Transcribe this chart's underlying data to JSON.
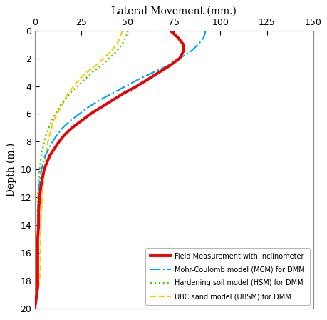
{
  "title": "Lateral Movement (mm.)",
  "ylabel": "Depth (m.)",
  "xlim": [
    0,
    150
  ],
  "ylim": [
    20,
    0
  ],
  "xticks": [
    0,
    25,
    50,
    75,
    100,
    125,
    150
  ],
  "yticks": [
    0,
    2,
    4,
    6,
    8,
    10,
    12,
    14,
    16,
    18,
    20
  ],
  "field_depth": [
    0,
    0.5,
    1.0,
    1.5,
    2.0,
    2.5,
    3.0,
    3.5,
    4.0,
    4.5,
    5.0,
    5.5,
    6.0,
    6.5,
    7.0,
    7.5,
    8.0,
    9.0,
    10.0,
    11.0,
    12.0,
    13.0,
    14.0,
    15.0,
    16.0,
    17.0,
    18.0,
    18.5,
    19.0,
    20.0
  ],
  "field_lateral": [
    73,
    77,
    80,
    80,
    78,
    73,
    67,
    61,
    55,
    48,
    42,
    36,
    30,
    25,
    20,
    16,
    13,
    8,
    5,
    3.5,
    2.5,
    2,
    2,
    1.5,
    1.5,
    1.5,
    1.5,
    1.5,
    1,
    0
  ],
  "mcm_depth": [
    0,
    0.5,
    1.0,
    1.5,
    2.0,
    2.5,
    3.0,
    3.5,
    4.0,
    4.5,
    5.0,
    5.5,
    6.0,
    6.5,
    7.0,
    7.5,
    8.0,
    9.0,
    10.0,
    11.0,
    12.0,
    13.0,
    14.0,
    15.0,
    16.0,
    17.0,
    18.0,
    19.0,
    20.0
  ],
  "mcm_lateral": [
    92,
    91,
    88,
    84,
    78,
    72,
    64,
    56,
    49,
    42,
    35,
    29,
    24,
    19,
    15,
    12,
    9.5,
    5.5,
    3.5,
    2.5,
    2,
    1.5,
    1.5,
    1.5,
    1.5,
    1.5,
    1.5,
    1,
    0
  ],
  "hsm_depth": [
    0,
    0.5,
    1.0,
    1.5,
    2.0,
    2.5,
    3.0,
    3.5,
    4.0,
    4.5,
    5.0,
    5.5,
    6.0,
    6.5,
    7.0,
    7.5,
    8.0,
    9.0,
    10.0,
    11.0,
    12.0,
    13.0,
    14.0,
    15.0,
    16.0,
    17.0,
    18.0,
    19.0,
    20.0
  ],
  "hsm_lateral": [
    50,
    49,
    47,
    44,
    40,
    36,
    31,
    27,
    23,
    19,
    16,
    13,
    11,
    9,
    7.5,
    6,
    5,
    3.5,
    2.5,
    2,
    1.5,
    1.5,
    1.5,
    1.5,
    1.5,
    1.5,
    1.5,
    1,
    0
  ],
  "ubsm_depth": [
    0,
    0.5,
    1.0,
    1.5,
    2.0,
    2.5,
    3.0,
    3.5,
    4.0,
    4.5,
    5.0,
    5.5,
    6.0,
    6.5,
    7.0,
    7.5,
    8.0,
    9.0,
    10.0,
    11.0,
    12.0,
    13.0,
    14.0,
    15.0,
    16.0,
    17.0,
    18.0,
    19.0,
    20.0
  ],
  "ubsm_lateral": [
    47,
    46,
    44,
    41,
    37,
    33,
    28,
    24,
    21,
    18,
    16,
    14,
    12,
    10,
    9,
    8,
    7,
    6,
    5,
    4.5,
    4,
    3.5,
    3,
    3,
    3,
    3,
    2.5,
    1,
    0
  ],
  "field_color": "#ee0000",
  "mcm_color": "#00aaff",
  "hsm_color": "#44cc00",
  "ubsm_color": "#ffcc00",
  "legend_labels": [
    "Field Measurement with Inclinometer",
    "Mohr-Coulomb model (MCM) for DMM",
    "Hardening soil model (HSM) for DMM",
    "UBC sand model (UBSM) for DMM"
  ],
  "bg_color": "#ffffff",
  "field_lw": 2.8,
  "other_lw": 1.6
}
